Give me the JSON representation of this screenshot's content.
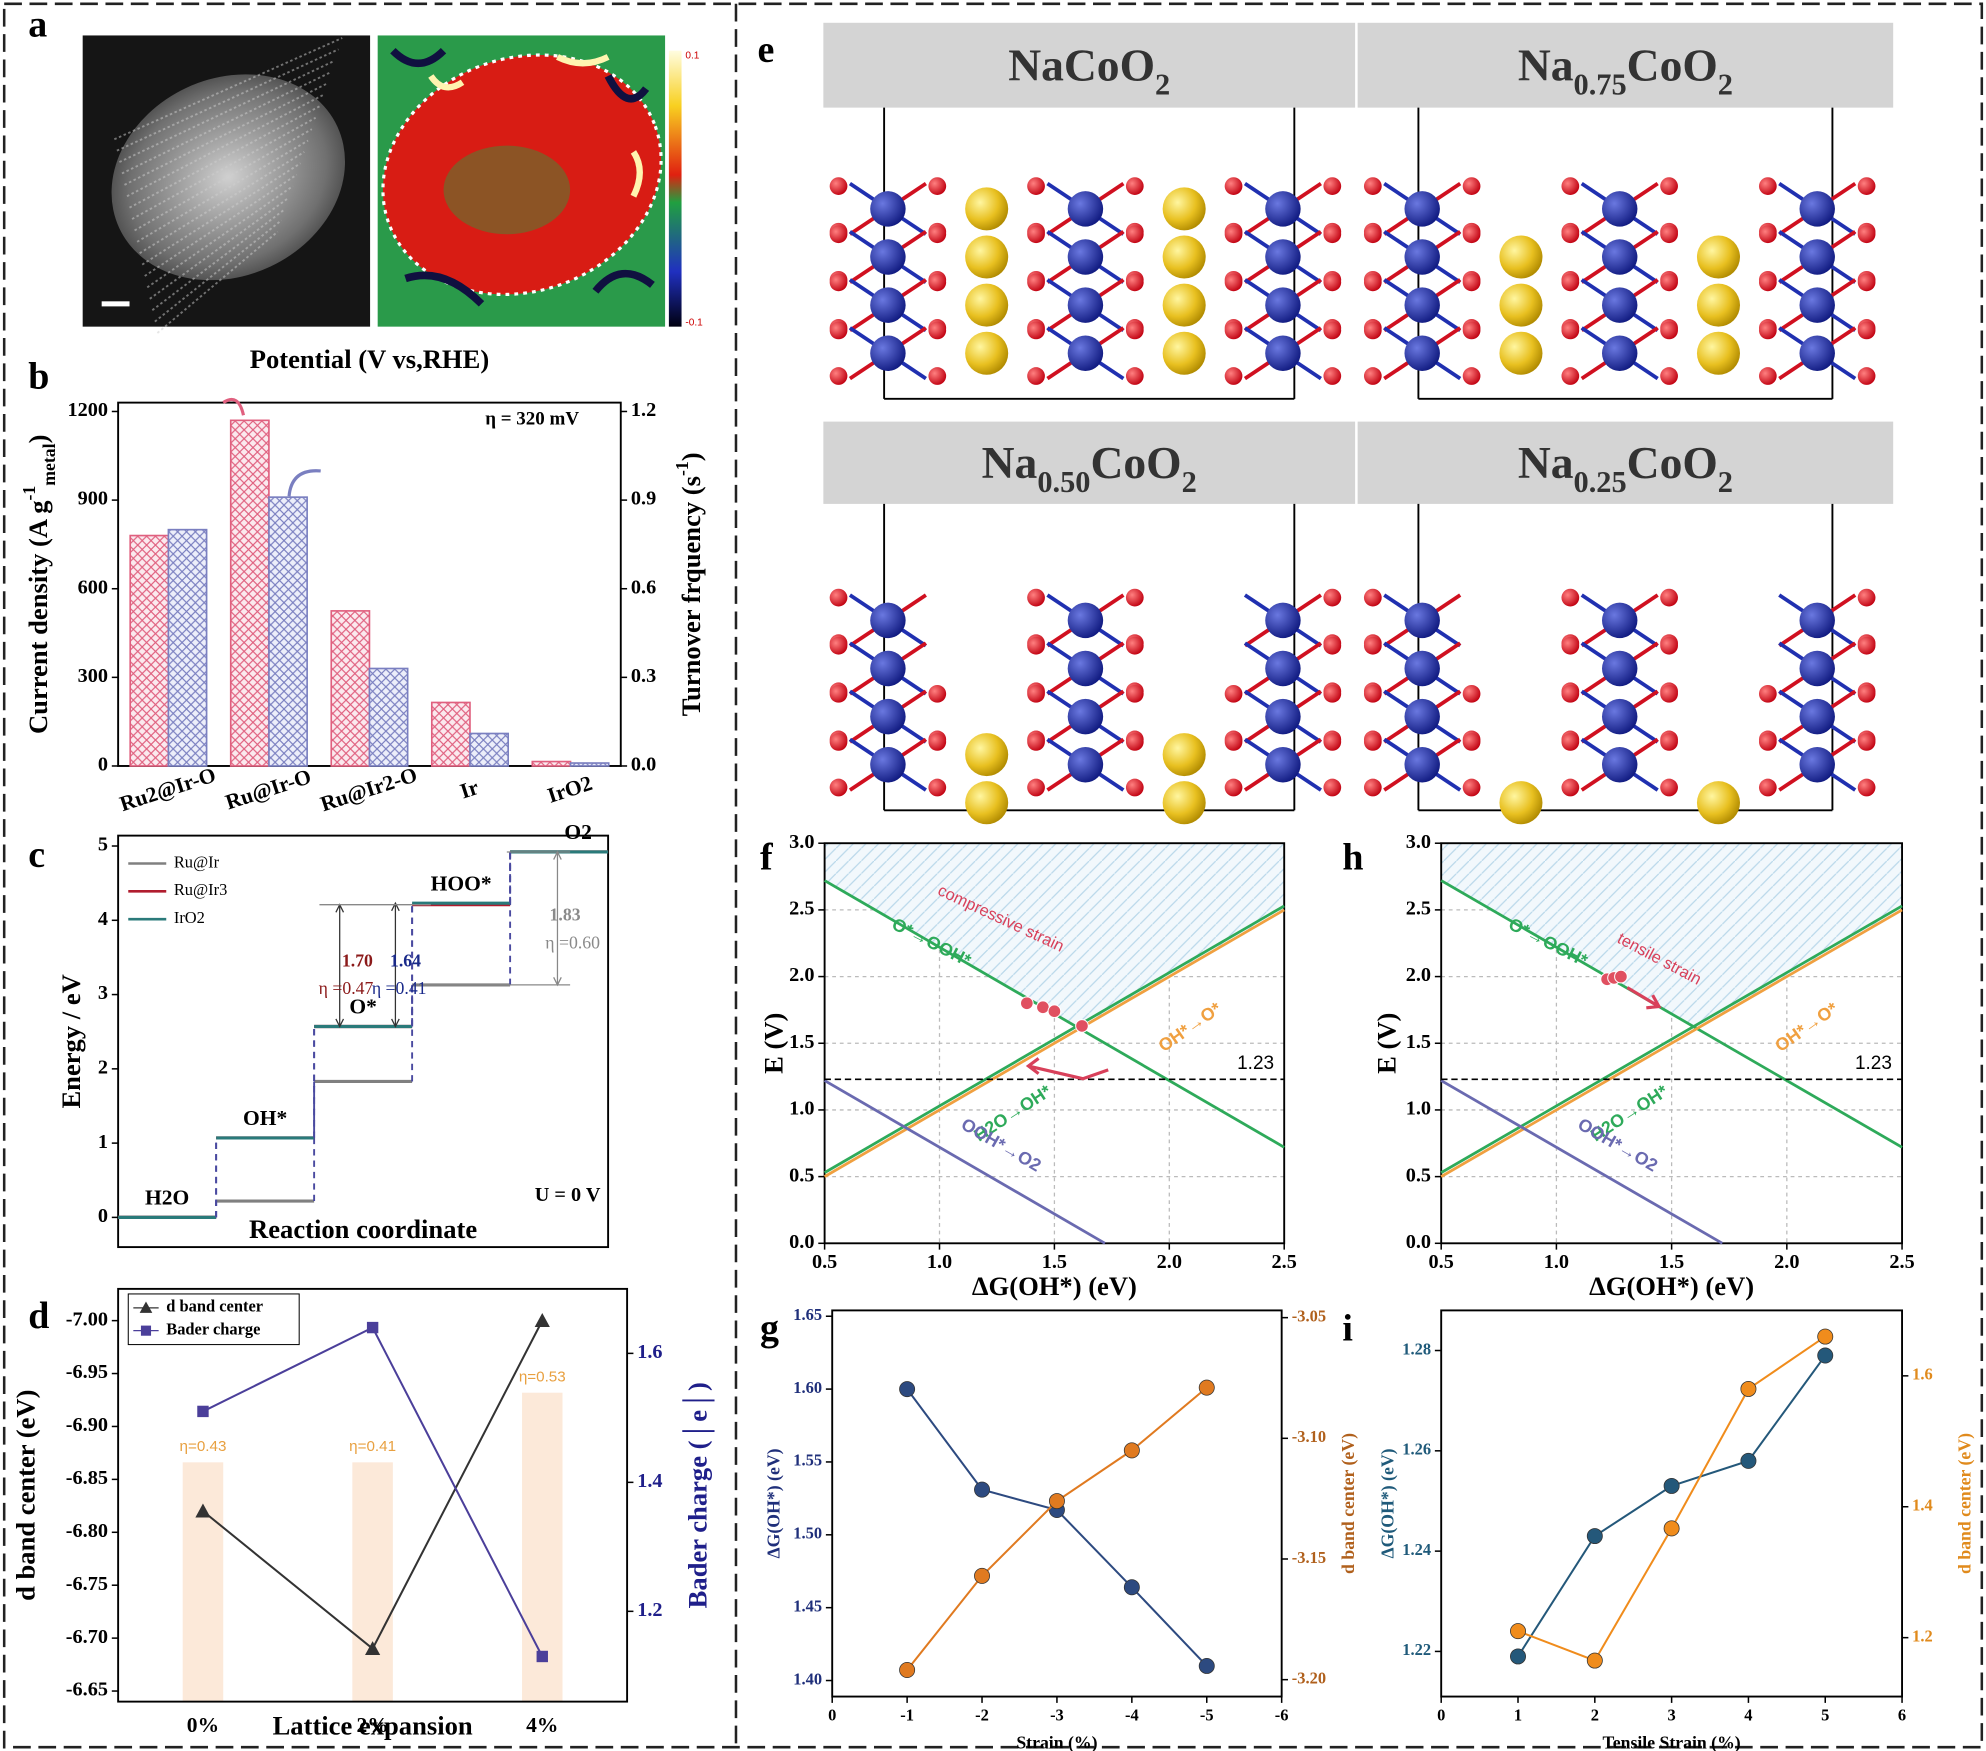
{
  "panel_labels": [
    "a",
    "b",
    "c",
    "d",
    "e",
    "f",
    "g",
    "h",
    "i"
  ],
  "image_a": {
    "colorbar_ticks": [
      0.1,
      -0.1
    ]
  },
  "structures": [
    {
      "parts": [
        "NaCoO",
        "2"
      ]
    },
    {
      "parts": [
        "Na",
        "0.75",
        "CoO",
        "2"
      ]
    },
    {
      "parts": [
        "Na",
        "0.50",
        "CoO",
        "2"
      ]
    },
    {
      "parts": [
        "Na",
        "0.25",
        "CoO",
        "2"
      ]
    }
  ],
  "chart_data": [
    {
      "type": "bar",
      "title": "Potential (V vs,RHE)",
      "annotation": "η = 320 mV",
      "y_label": [
        "Current density (A g",
        "-1",
        "metal",
        ")"
      ],
      "y2_label": [
        "Turnover frquency (s",
        "-1",
        ")"
      ],
      "categories": [
        "Ru2@Ir-O",
        "Ru@Ir-O",
        "Ru@Ir2-O",
        "Ir",
        "IrO2"
      ],
      "series": [
        {
          "color": "#e0607f",
          "values": [
            780,
            1170,
            525,
            215,
            15
          ]
        },
        {
          "color": "#7a7fc0",
          "axis": "y2",
          "values": [
            0.8,
            0.91,
            0.33,
            0.11,
            0.01
          ]
        }
      ],
      "ylim": [
        0,
        1230
      ],
      "yticks": [
        0,
        300,
        600,
        900,
        1200
      ],
      "y2lim": [
        0,
        1.23
      ],
      "y2ticks": [
        {
          "value": 0,
          "label": "0.0"
        },
        0.3,
        0.6,
        0.9,
        1.2
      ]
    },
    {
      "type": "step",
      "x_label": "Reaction coordinate",
      "y_label": "Energy / eV",
      "categories": [
        "H2O",
        "OH*",
        "O*",
        "HOO*",
        "O2"
      ],
      "series": [
        {
          "name": "Ru@Ir",
          "color": "#808080",
          "values": [
            0,
            0.22,
            1.83,
            3.13,
            4.92
          ]
        },
        {
          "name": "Ru@Ir3",
          "color": "#b01c2e",
          "values": [
            0,
            1.07,
            2.57,
            4.21,
            4.92
          ]
        },
        {
          "name": "IrO2",
          "color": "#2a7a7a",
          "values": [
            0,
            1.07,
            2.57,
            4.23,
            4.92
          ]
        }
      ],
      "ylim": [
        -0.4,
        5.14
      ],
      "yticks": [
        0,
        1,
        2,
        3,
        4,
        5
      ],
      "legend": "upper left",
      "annotations": [
        {
          "text": "1.70",
          "color": "#8b1a1a"
        },
        {
          "text": "η =0.47",
          "color": "#8b1a1a"
        },
        {
          "text": "1.64",
          "color": "#1a2a8a"
        },
        {
          "text": "η =0.41",
          "color": "#1a2a8a"
        },
        {
          "text": "1.83",
          "color": "#8a8a8a"
        },
        {
          "text": "η =0.60",
          "color": "#8a8a8a"
        }
      ],
      "condition": "U = 0 V"
    },
    {
      "type": "line",
      "x_label": "Lattice expansion",
      "y_label": "d band center (eV)",
      "y2_label": "Bader charge (│e│)",
      "categories": [
        "0%",
        "2%",
        "4%"
      ],
      "series": [
        {
          "name": "d band center",
          "color": "#333333",
          "marker": "triangle",
          "values": [
            -6.82,
            -6.69,
            -7.0
          ]
        },
        {
          "name": "Bader charge",
          "color": "#4b3f9a",
          "marker": "square",
          "axis": "y2",
          "values": [
            1.51,
            1.64,
            1.13
          ]
        }
      ],
      "ylim": [
        -6.64,
        -7.03
      ],
      "yticks": [
        {
          "value": -7.0,
          "label": "-7.00"
        },
        -6.95,
        {
          "value": -6.9,
          "label": "-6.90"
        },
        -6.85,
        {
          "value": -6.8,
          "label": "-6.80"
        },
        -6.75,
        {
          "value": -6.7,
          "label": "-6.70"
        },
        -6.65
      ],
      "y2lim": [
        1.06,
        1.7
      ],
      "y2ticks": [
        1.2,
        1.4,
        1.6
      ],
      "legend": "upper left",
      "annotations": [
        "η=0.43",
        "η=0.41",
        "η=0.53"
      ]
    },
    {
      "type": "line",
      "x_label": "ΔG(OH*) (eV)",
      "y_label": "E (V)",
      "xlim": [
        0.5,
        2.5
      ],
      "xticks": [
        0.5,
        {
          "value": 1,
          "label": "1.0"
        },
        1.5,
        {
          "value": 2,
          "label": "2.0"
        },
        2.5
      ],
      "ylim": [
        0,
        3
      ],
      "yticks": [
        {
          "value": 0,
          "label": "0.0"
        },
        0.5,
        {
          "value": 1,
          "label": "1.0"
        },
        1.5,
        {
          "value": 2,
          "label": "2.0"
        },
        2.5,
        {
          "value": 3,
          "label": "3.0"
        }
      ],
      "grid": true,
      "series": [
        {
          "name": "O*→OOH*",
          "color": "#2eaa5a",
          "x": [
            0.5,
            2.5
          ],
          "values": [
            2.72,
            0.72
          ]
        },
        {
          "name": "OH*→O*",
          "color": "#f0a040",
          "x": [
            0.5,
            2.5
          ],
          "values": [
            0.5,
            2.5
          ]
        },
        {
          "name": "H2O→OH*",
          "color": "#2eaa5a",
          "x": [
            0.5,
            2.5
          ],
          "values": [
            0.53,
            2.53
          ]
        },
        {
          "name": "OOH*→O2",
          "color": "#6a6ab0",
          "x": [
            0.5,
            1.72
          ],
          "values": [
            1.22,
            0
          ]
        }
      ],
      "reference_line": 1.23,
      "markers": {
        "color": "#e05060",
        "x": [
          1.38,
          1.45,
          1.5,
          1.62
        ],
        "y": [
          1.8,
          1.77,
          1.74,
          1.63
        ]
      },
      "annotation": "compressive strain"
    },
    {
      "type": "line",
      "x_label": "Strain (%)",
      "y_label": "ΔG(OH*) (eV)",
      "y2_label": "d band center (eV)",
      "x": [
        -1,
        -2,
        -3,
        -4,
        -5
      ],
      "xlim": [
        0,
        -6
      ],
      "xticks": [
        0,
        -1,
        -2,
        -3,
        -4,
        -5,
        -6
      ],
      "series": [
        {
          "color": "#2d4a80",
          "marker": "circle",
          "values": [
            1.6,
            1.531,
            1.517,
            1.464,
            1.41
          ]
        },
        {
          "color": "#e07a20",
          "marker": "circle",
          "axis": "y2",
          "values": [
            -3.196,
            -3.157,
            -3.126,
            -3.105,
            -3.079
          ]
        }
      ],
      "ylim": [
        1.389,
        1.654
      ],
      "yticks": [
        {
          "value": 1.4,
          "label": "1.40"
        },
        1.45,
        {
          "value": 1.5,
          "label": "1.50"
        },
        1.55,
        {
          "value": 1.6,
          "label": "1.60"
        },
        1.65
      ],
      "y2lim": [
        -3.207,
        -3.047
      ],
      "y2ticks": [
        {
          "value": -3.2,
          "label": "-3.20"
        },
        -3.15,
        {
          "value": -3.1,
          "label": "-3.10"
        },
        -3.05
      ]
    },
    {
      "type": "line",
      "x_label": "ΔG(OH*) (eV)",
      "y_label": "E (V)",
      "xlim": [
        0.5,
        2.5
      ],
      "xticks": [
        0.5,
        {
          "value": 1,
          "label": "1.0"
        },
        1.5,
        {
          "value": 2,
          "label": "2.0"
        },
        2.5
      ],
      "ylim": [
        0,
        3
      ],
      "yticks": [
        {
          "value": 0,
          "label": "0.0"
        },
        0.5,
        {
          "value": 1,
          "label": "1.0"
        },
        1.5,
        {
          "value": 2,
          "label": "2.0"
        },
        2.5,
        {
          "value": 3,
          "label": "3.0"
        }
      ],
      "grid": true,
      "series": [
        {
          "name": "O*→OOH*",
          "color": "#2eaa5a",
          "x": [
            0.5,
            2.5
          ],
          "values": [
            2.72,
            0.72
          ]
        },
        {
          "name": "OH*→O*",
          "color": "#f0a040",
          "x": [
            0.5,
            2.5
          ],
          "values": [
            0.5,
            2.5
          ]
        },
        {
          "name": "H2O→OH*",
          "color": "#2eaa5a",
          "x": [
            0.5,
            2.5
          ],
          "values": [
            0.53,
            2.53
          ]
        },
        {
          "name": "OOH*→O2",
          "color": "#6a6ab0",
          "x": [
            0.5,
            1.72
          ],
          "values": [
            1.22,
            0
          ]
        }
      ],
      "reference_line": 1.23,
      "markers": {
        "color": "#e05060",
        "x": [
          1.22,
          1.25,
          1.28
        ],
        "y": [
          1.98,
          1.99,
          2.0
        ]
      },
      "annotation": "tensile strain"
    },
    {
      "type": "line",
      "x_label": "Tensile Strain (%)",
      "y_label": "ΔG(OH*) (eV)",
      "y2_label": "d band center (eV)",
      "x": [
        1,
        2,
        3,
        4,
        5
      ],
      "xlim": [
        0,
        6
      ],
      "xticks": [
        0,
        1,
        2,
        3,
        4,
        5,
        6
      ],
      "series": [
        {
          "color": "#24587a",
          "marker": "circle",
          "values": [
            1.219,
            1.243,
            1.253,
            1.258,
            1.279
          ]
        },
        {
          "color": "#f08c1c",
          "marker": "circle",
          "axis": "y2",
          "values": [
            1.21,
            1.165,
            1.367,
            1.58,
            1.66
          ]
        }
      ],
      "ylim": [
        1.211,
        1.288
      ],
      "yticks": [
        1.22,
        1.24,
        1.26,
        1.28
      ],
      "y2lim": [
        1.11,
        1.7
      ],
      "y2ticks": [
        1.2,
        1.4,
        1.6
      ]
    }
  ]
}
